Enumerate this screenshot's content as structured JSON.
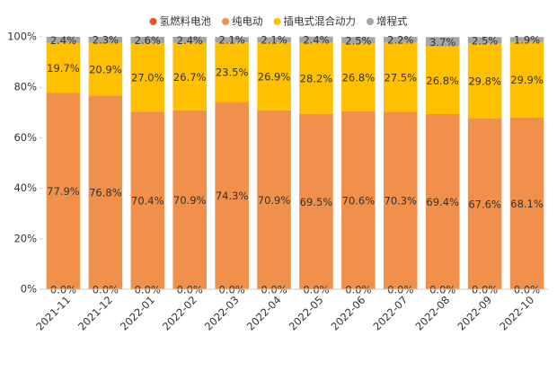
{
  "chart_data": {
    "type": "stacked_bar",
    "categories": [
      "2021-11",
      "2021-12",
      "2022-01",
      "2022-02",
      "2022-03",
      "2022-04",
      "2022-05",
      "2022-06",
      "2022-07",
      "2022-08",
      "2022-09",
      "2022-10"
    ],
    "series": [
      {
        "name": "氢燃料电池",
        "color": "#e8541e",
        "values": [
          0,
          0,
          0,
          0,
          0,
          0,
          0,
          0,
          0,
          0,
          0,
          0
        ],
        "value_labels": [
          "0.0%",
          "0.0%",
          "0.0%",
          "0.0%",
          "0.0%",
          "0.0%",
          "0.0%",
          "0.0%",
          "0.0%",
          "0.0%",
          "0.0%",
          "0.0%"
        ]
      },
      {
        "name": "纯电动",
        "color": "#f0904a",
        "values": [
          77.9,
          76.8,
          70.4,
          70.9,
          74.3,
          70.9,
          69.5,
          70.6,
          70.3,
          69.4,
          67.6,
          68.1
        ],
        "value_labels": [
          "77.9%",
          "76.8%",
          "70.4%",
          "70.9%",
          "74.3%",
          "70.9%",
          "69.5%",
          "70.6%",
          "70.3%",
          "69.4%",
          "67.6%",
          "68.1%"
        ]
      },
      {
        "name": "插电式混合动力",
        "color": "#ffc000",
        "values": [
          19.7,
          20.9,
          27.0,
          26.7,
          23.5,
          26.9,
          28.2,
          26.8,
          27.5,
          26.8,
          29.8,
          29.9
        ],
        "value_labels": [
          "19.7%",
          "20.9%",
          "27.0%",
          "26.7%",
          "23.5%",
          "26.9%",
          "28.2%",
          "26.8%",
          "27.5%",
          "26.8%",
          "29.8%",
          "29.9%"
        ]
      },
      {
        "name": "增程式",
        "color": "#a5a5a5",
        "values": [
          2.4,
          2.3,
          2.6,
          2.4,
          2.1,
          2.1,
          2.4,
          2.5,
          2.2,
          3.7,
          2.5,
          1.9
        ],
        "value_labels": [
          "2.4%",
          "2.3%",
          "2.6%",
          "2.4%",
          "2.1%",
          "2.1%",
          "2.4%",
          "2.5%",
          "2.2%",
          "3.7%",
          "2.5%",
          "1.9%"
        ]
      }
    ],
    "ylim": [
      0,
      100
    ],
    "yticks": [
      {
        "value": 0,
        "label": "0%"
      },
      {
        "value": 20,
        "label": "20%"
      },
      {
        "value": 40,
        "label": "40%"
      },
      {
        "value": 60,
        "label": "60%"
      },
      {
        "value": 80,
        "label": "80%"
      },
      {
        "value": 100,
        "label": "100%"
      }
    ],
    "legend": "top"
  }
}
